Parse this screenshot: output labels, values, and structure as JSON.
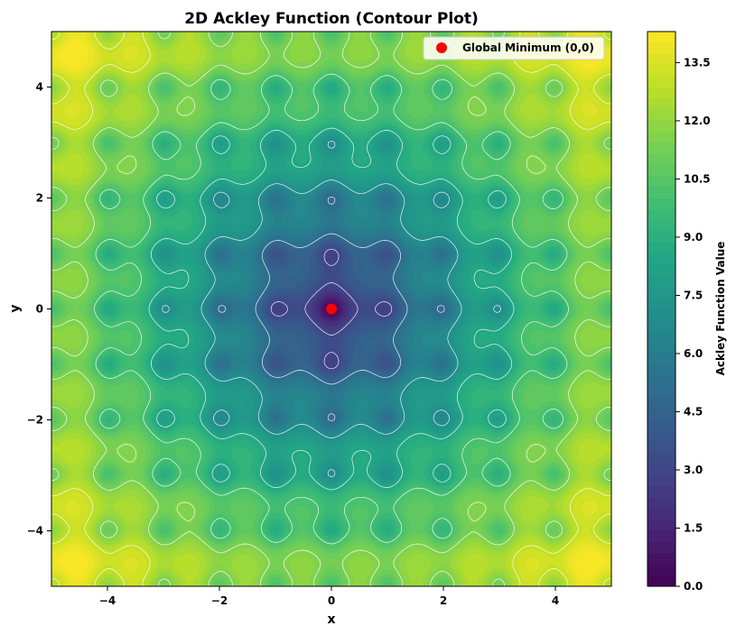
{
  "chart_data": {
    "type": "heatmap",
    "subtype": "filled-contour",
    "function": "ackley",
    "title": "2D Ackley Function (Contour Plot)",
    "xlabel": "x",
    "ylabel": "y",
    "xlim": [
      -5,
      5
    ],
    "ylim": [
      -5,
      5
    ],
    "xticks": [
      -4,
      -2,
      0,
      2,
      4
    ],
    "yticks": [
      -4,
      -2,
      0,
      2,
      4
    ],
    "xtick_labels": [
      "−4",
      "−2",
      "0",
      "2",
      "4"
    ],
    "ytick_labels": [
      "−4",
      "−2",
      "0",
      "2",
      "4"
    ],
    "colormap": "viridis",
    "colorbar": {
      "label": "Ackley Function Value",
      "range": [
        0.0,
        14.3
      ],
      "ticks": [
        0.0,
        1.5,
        3.0,
        4.5,
        6.0,
        7.5,
        9.0,
        10.5,
        12.0,
        13.5
      ],
      "tick_labels": [
        "0.0",
        "1.5",
        "3.0",
        "4.5",
        "6.0",
        "7.5",
        "9.0",
        "10.5",
        "12.0",
        "13.5"
      ]
    },
    "contour_lines": {
      "color": "#ffffff",
      "levels": [
        3,
        5,
        7,
        8.5,
        10,
        11.5,
        13
      ]
    },
    "points": [
      {
        "label": "Global Minimum (0,0)",
        "x": 0,
        "y": 0,
        "color": "#ff0000"
      }
    ],
    "legend": {
      "position": "top-right",
      "entries": [
        "Global Minimum (0,0)"
      ]
    }
  }
}
